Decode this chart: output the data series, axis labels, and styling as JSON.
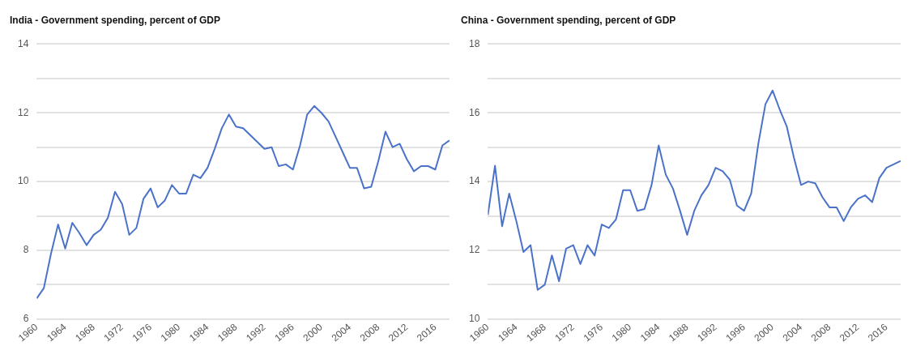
{
  "chart_data": [
    {
      "type": "line",
      "title": "India - Government spending, percent of GDP",
      "xlim": [
        1960,
        2018
      ],
      "xticks": [
        1960,
        1964,
        1968,
        1972,
        1976,
        1980,
        1984,
        1988,
        1992,
        1996,
        2000,
        2004,
        2008,
        2012,
        2016
      ],
      "ylim": [
        6,
        14
      ],
      "yticks": [
        6,
        {
          "value": 7,
          "label": null
        },
        8,
        {
          "value": 9,
          "label": null
        },
        10,
        {
          "value": 11,
          "label": null
        },
        12,
        {
          "value": 13,
          "label": null
        },
        14
      ],
      "grid": "y",
      "marker": "none",
      "series": [
        {
          "color": "#4a72c8",
          "x": [
            1960,
            1961,
            1962,
            1963,
            1964,
            1965,
            1966,
            1967,
            1968,
            1969,
            1970,
            1971,
            1972,
            1973,
            1974,
            1975,
            1976,
            1977,
            1978,
            1979,
            1980,
            1981,
            1982,
            1983,
            1984,
            1985,
            1986,
            1987,
            1988,
            1989,
            1990,
            1991,
            1992,
            1993,
            1994,
            1995,
            1996,
            1997,
            1998,
            1999,
            2000,
            2001,
            2002,
            2003,
            2004,
            2005,
            2006,
            2007,
            2008,
            2009,
            2010,
            2011,
            2012,
            2013,
            2014,
            2015,
            2016,
            2017,
            2018
          ],
          "values": [
            6.6,
            6.9,
            7.9,
            8.75,
            8.05,
            8.8,
            8.5,
            8.15,
            8.45,
            8.6,
            8.95,
            9.7,
            9.35,
            8.45,
            8.65,
            9.5,
            9.8,
            9.25,
            9.45,
            9.9,
            9.65,
            9.65,
            10.2,
            10.1,
            10.4,
            10.95,
            11.55,
            11.95,
            11.6,
            11.55,
            11.35,
            11.15,
            10.95,
            11.0,
            10.45,
            10.5,
            10.35,
            11.05,
            11.95,
            12.2,
            12.0,
            11.75,
            11.3,
            10.85,
            10.4,
            10.4,
            9.8,
            9.85,
            10.6,
            11.45,
            11.0,
            11.1,
            10.65,
            10.3,
            10.45,
            10.45,
            10.35,
            11.05,
            11.2
          ]
        }
      ]
    },
    {
      "type": "line",
      "title": "China - Government spending, percent of GDP",
      "xlim": [
        1960,
        2018
      ],
      "xticks": [
        1960,
        1964,
        1968,
        1972,
        1976,
        1980,
        1984,
        1988,
        1992,
        1996,
        2000,
        2004,
        2008,
        2012,
        2016
      ],
      "ylim": [
        10,
        18
      ],
      "yticks": [
        10,
        {
          "value": 11,
          "label": null
        },
        12,
        {
          "value": 13,
          "label": null
        },
        14,
        {
          "value": 15,
          "label": null
        },
        16,
        {
          "value": 17,
          "label": null
        },
        18
      ],
      "grid": "y",
      "marker": "none",
      "series": [
        {
          "color": "#4a72c8",
          "x": [
            1960,
            1961,
            1962,
            1963,
            1964,
            1965,
            1966,
            1967,
            1968,
            1969,
            1970,
            1971,
            1972,
            1973,
            1974,
            1975,
            1976,
            1977,
            1978,
            1979,
            1980,
            1981,
            1982,
            1983,
            1984,
            1985,
            1986,
            1987,
            1988,
            1989,
            1990,
            1991,
            1992,
            1993,
            1994,
            1995,
            1996,
            1997,
            1998,
            1999,
            2000,
            2001,
            2002,
            2003,
            2004,
            2005,
            2006,
            2007,
            2008,
            2009,
            2010,
            2011,
            2012,
            2013,
            2014,
            2015,
            2016,
            2017,
            2018
          ],
          "values": [
            13.03,
            14.46,
            12.7,
            13.65,
            12.85,
            11.95,
            12.15,
            10.85,
            11.0,
            11.85,
            11.1,
            12.05,
            12.15,
            11.6,
            12.15,
            11.85,
            12.75,
            12.65,
            12.9,
            13.75,
            13.75,
            13.15,
            13.2,
            13.9,
            15.05,
            14.2,
            13.8,
            13.15,
            12.45,
            13.15,
            13.6,
            13.9,
            14.4,
            14.3,
            14.05,
            13.3,
            13.15,
            13.65,
            15.1,
            16.25,
            16.65,
            16.1,
            15.6,
            14.7,
            13.9,
            14.0,
            13.95,
            13.55,
            13.25,
            13.25,
            12.85,
            13.25,
            13.5,
            13.6,
            13.4,
            14.1,
            14.4,
            14.5,
            14.6
          ]
        }
      ]
    }
  ]
}
